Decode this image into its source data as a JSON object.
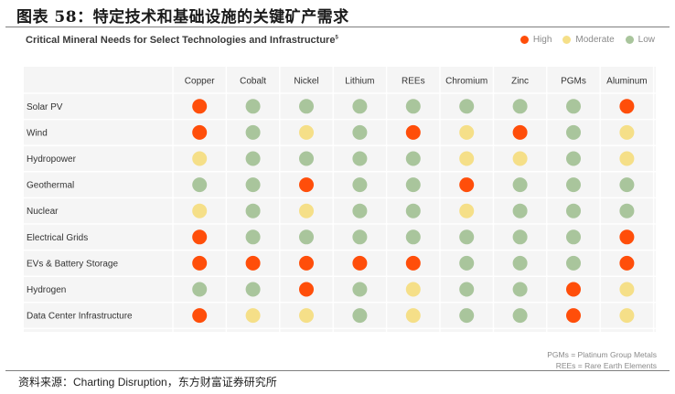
{
  "figure_title": "图表 58：特定技术和基础设施的关键矿产需求",
  "chart_title": "Critical Mineral Needs for Select Technologies and Infrastructure",
  "chart_title_sup": "5",
  "legend": [
    {
      "label": "High",
      "color": "#ff4e0a"
    },
    {
      "label": "Moderate",
      "color": "#f5df88"
    },
    {
      "label": "Low",
      "color": "#a9c59c"
    }
  ],
  "notes": [
    "PGMs = Platinum Group Metals",
    "REEs = Rare Earth Elements"
  ],
  "source": "资料来源：Charting Disruption，东方财富证券研究所",
  "chart_data": {
    "type": "heatmap",
    "columns": [
      "Copper",
      "Cobalt",
      "Nickel",
      "Lithium",
      "REEs",
      "Chromium",
      "Zinc",
      "PGMs",
      "Aluminum"
    ],
    "rows": [
      {
        "label": "Solar PV",
        "values": [
          "High",
          "Low",
          "Low",
          "Low",
          "Low",
          "Low",
          "Low",
          "Low",
          "High"
        ]
      },
      {
        "label": "Wind",
        "values": [
          "High",
          "Low",
          "Moderate",
          "Low",
          "High",
          "Moderate",
          "High",
          "Low",
          "Moderate"
        ]
      },
      {
        "label": "Hydropower",
        "values": [
          "Moderate",
          "Low",
          "Low",
          "Low",
          "Low",
          "Moderate",
          "Moderate",
          "Low",
          "Moderate"
        ]
      },
      {
        "label": "Geothermal",
        "values": [
          "Low",
          "Low",
          "High",
          "Low",
          "Low",
          "High",
          "Low",
          "Low",
          "Low"
        ]
      },
      {
        "label": "Nuclear",
        "values": [
          "Moderate",
          "Low",
          "Moderate",
          "Low",
          "Low",
          "Moderate",
          "Low",
          "Low",
          "Low"
        ]
      },
      {
        "label": "Electrical Grids",
        "values": [
          "High",
          "Low",
          "Low",
          "Low",
          "Low",
          "Low",
          "Low",
          "Low",
          "High"
        ]
      },
      {
        "label": "EVs & Battery Storage",
        "values": [
          "High",
          "High",
          "High",
          "High",
          "High",
          "Low",
          "Low",
          "Low",
          "High"
        ]
      },
      {
        "label": "Hydrogen",
        "values": [
          "Low",
          "Low",
          "High",
          "Low",
          "Moderate",
          "Low",
          "Low",
          "High",
          "Moderate"
        ]
      },
      {
        "label": "Data Center Infrastructure",
        "values": [
          "High",
          "Moderate",
          "Moderate",
          "Low",
          "Moderate",
          "Low",
          "Low",
          "High",
          "Moderate"
        ]
      }
    ],
    "colors": {
      "High": "#ff4e0a",
      "Moderate": "#f5df88",
      "Low": "#a9c59c"
    }
  }
}
